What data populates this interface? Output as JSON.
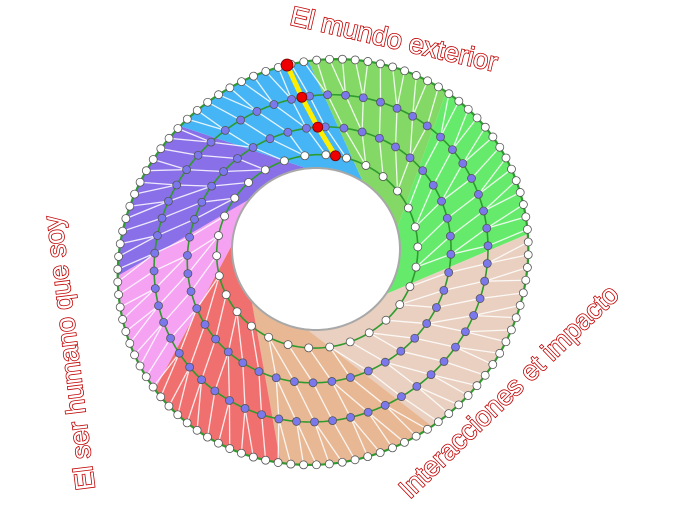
{
  "labels": {
    "top": "El mundo exterior",
    "left": "El ser humano que soy",
    "right": "Interacciones et impacto"
  },
  "colors": {
    "label": "#c00000",
    "ring_line": "#2e9b2e",
    "mesh_line": "#ffffff",
    "hole_edge": "#a8a8a8",
    "node_inner": "#7b78ee",
    "node_edge": "#ffffff",
    "highlight_node": "#ee0000",
    "highlight_path": "#ffee00",
    "sectors": [
      "#f5a2f2",
      "#8a70e8",
      "#45b5f5",
      "#84d866",
      "#66ea6c",
      "#e9d0c0",
      "#e8b894",
      "#f07070"
    ]
  }
}
